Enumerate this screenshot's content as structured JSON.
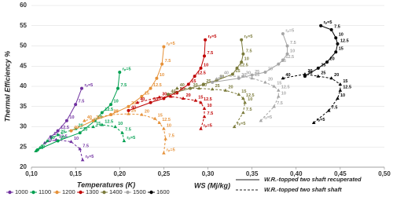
{
  "chart_data": {
    "type": "line",
    "y_label": "Thermal Efficiency  %",
    "x_label": "WS  (Mj/kg)",
    "legend_title": "Temperatures (K)",
    "xlim": [
      0.1,
      0.5
    ],
    "xticks": [
      {
        "value": 0.1,
        "label": "0,10"
      },
      {
        "value": 0.15,
        "label": "0,15"
      },
      {
        "value": 0.2,
        "label": "0,20"
      },
      {
        "value": 0.25,
        "label": "0,25"
      },
      {
        "value": 0.3,
        "label": "0,30"
      },
      {
        "value": 0.35,
        "label": "0,35"
      },
      {
        "value": 0.4,
        "label": "0,40"
      },
      {
        "value": 0.45,
        "label": "0,45"
      },
      {
        "value": 0.5,
        "label": "0,50"
      }
    ],
    "ylim": [
      20,
      60
    ],
    "yticks": [
      20,
      25,
      30,
      35,
      40,
      45,
      50,
      55,
      60
    ],
    "grid": true,
    "line_styles": [
      {
        "name": "W.R.-topped two shaft recuperated",
        "dash": false
      },
      {
        "name": "W.R.-topped two shaft shaft",
        "dash": true
      }
    ],
    "series": [
      {
        "name": "1000",
        "color": "#7030a0",
        "recuperated": {
          "x": [
            0.157,
            0.15,
            0.14,
            0.13,
            0.122
          ],
          "values": [
            39.5,
            35.5,
            31.5,
            29,
            27.5
          ],
          "point_labels": [
            "rₚ=5",
            "7.5",
            "10",
            "12.5",
            "15"
          ]
        },
        "shaft": {
          "x": [
            0.158,
            0.155,
            0.145,
            0.128,
            0.115
          ],
          "values": [
            21.8,
            24.5,
            26.3,
            26.8,
            26
          ],
          "point_labels": [
            "rₚ=5",
            "7.5",
            "10",
            "12.5",
            "15"
          ]
        }
      },
      {
        "name": "1100",
        "color": "#00a050",
        "recuperated": {
          "x": [
            0.2,
            0.198,
            0.19,
            0.18,
            0.172,
            0.155,
            0.13,
            0.107
          ],
          "values": [
            43.5,
            39.5,
            35.5,
            33.5,
            31.5,
            28.5,
            26.5,
            24.3
          ],
          "point_labels": [
            "rₚ=5",
            "7.5",
            "10",
            "12.5",
            "15",
            "20",
            "25",
            "30"
          ]
        },
        "shaft": {
          "x": [
            0.205,
            0.203,
            0.195,
            0.18,
            0.17,
            0.15,
            0.13,
            0.118,
            0.105
          ],
          "values": [
            26.5,
            28.5,
            30,
            30.5,
            30,
            29.5,
            28,
            26.5,
            24
          ],
          "point_labels": [
            "rₚ=5",
            "7.5",
            "10",
            "12.5",
            "15",
            "20",
            "25",
            "30",
            "40"
          ]
        }
      },
      {
        "name": "1200",
        "color": "#e69138",
        "recuperated": {
          "x": [
            0.25,
            0.248,
            0.242,
            0.235,
            0.225,
            0.21,
            0.19,
            0.17,
            0.145
          ],
          "values": [
            49.8,
            45.5,
            42,
            39.5,
            37.5,
            35,
            33,
            31.5,
            29
          ],
          "point_labels": [
            "rₚ=5",
            "7.5",
            "10",
            "12.5",
            "15",
            "20",
            "25",
            "30",
            "40"
          ]
        },
        "shaft": {
          "x": [
            0.25,
            0.252,
            0.25,
            0.245,
            0.24,
            0.225,
            0.21,
            0.19,
            0.16
          ],
          "values": [
            23.5,
            27,
            29.5,
            31,
            32,
            33,
            33.2,
            33,
            31.5
          ],
          "point_labels": [
            "rₚ=5",
            "7.5",
            "10",
            "12.5",
            "15",
            "20",
            "25",
            "30",
            "40"
          ]
        }
      },
      {
        "name": "1300",
        "color": "#c00000",
        "recuperated": {
          "x": [
            0.297,
            0.296,
            0.292,
            0.285,
            0.278,
            0.265,
            0.25,
            0.235,
            0.21
          ],
          "values": [
            51.5,
            47.5,
            44.5,
            42.5,
            40.5,
            38.5,
            37,
            36,
            34
          ],
          "point_labels": [
            "rₚ=5",
            "7.5",
            "10",
            "12.5",
            "15",
            "20",
            "25",
            "30",
            "40"
          ]
        },
        "shaft": {
          "x": [
            0.292,
            0.296,
            0.296,
            0.292,
            0.286,
            0.272,
            0.258,
            0.245,
            0.22
          ],
          "values": [
            29.5,
            32.5,
            34.5,
            36,
            36.5,
            37,
            37.5,
            37.3,
            36
          ],
          "point_labels": [
            "rₚ=5",
            "7.5",
            "10",
            "12.5",
            "15",
            "20",
            "25",
            "30",
            "40"
          ]
        }
      },
      {
        "name": "1400",
        "color": "#7a7a3a",
        "recuperated": {
          "x": [
            0.338,
            0.34,
            0.338,
            0.333,
            0.328,
            0.31,
            0.295,
            0.28,
            0.255
          ],
          "values": [
            51.5,
            48,
            46,
            44.5,
            43,
            41.5,
            40.5,
            39.5,
            38
          ],
          "point_labels": [
            "rₚ=5",
            "7.5",
            "10",
            "12.5",
            "15",
            "20",
            "25",
            "30",
            "40"
          ]
        },
        "shaft": {
          "x": [
            0.33,
            0.34,
            0.342,
            0.34,
            0.335,
            0.32,
            0.305,
            0.29,
            0.265
          ],
          "values": [
            30,
            33.5,
            36,
            37,
            38,
            39,
            39.3,
            39.5,
            39.5
          ],
          "point_labels": [
            "rₚ=5",
            "7.5",
            "10",
            "12.5",
            "15",
            "20",
            "25",
            "30",
            "40"
          ]
        }
      },
      {
        "name": "1500",
        "color": "#a6a6a6",
        "recuperated": {
          "x": [
            0.385,
            0.39,
            0.39,
            0.385,
            0.38,
            0.365,
            0.35,
            0.335,
            0.305
          ],
          "values": [
            53,
            50,
            48,
            46.5,
            45.5,
            43.5,
            42.8,
            42,
            41
          ],
          "point_labels": [
            "rₚ=5",
            "7.5",
            "10",
            "12.5",
            "15",
            "20",
            "25",
            "30",
            "40"
          ]
        },
        "shaft": {
          "x": [
            0.36,
            0.375,
            0.38,
            0.38,
            0.375,
            0.365,
            0.35,
            0.34,
            0.315
          ],
          "values": [
            31.5,
            35,
            37.5,
            39,
            40,
            41,
            42,
            42.5,
            42.5
          ],
          "point_labels": [
            "rₚ=5",
            "7.5",
            "10",
            "12.5",
            "15",
            "20",
            "25",
            "30",
            "40"
          ]
        }
      },
      {
        "name": "1600",
        "color": "#000000",
        "recuperated": {
          "x": [
            0.428,
            0.44,
            0.445,
            0.447,
            0.445,
            0.435,
            0.425,
            0.41
          ],
          "values": [
            55,
            54,
            52,
            50.5,
            48.5,
            46,
            44.5,
            42.5
          ],
          "point_labels": [
            "rₚ=5",
            "7.5",
            "10",
            "12.5",
            "15",
            "20",
            "25",
            "30"
          ]
        },
        "shaft": {
          "x": [
            0.42,
            0.437,
            0.447,
            0.45,
            0.45,
            0.44,
            0.425,
            0.41,
            0.385
          ],
          "values": [
            31,
            34,
            37,
            39,
            40.5,
            42,
            42.5,
            43,
            42
          ],
          "point_labels": [
            "rₚ=5",
            "7.5",
            "10",
            "12.5",
            "15",
            "20",
            "25",
            "30",
            "40"
          ]
        }
      }
    ]
  }
}
